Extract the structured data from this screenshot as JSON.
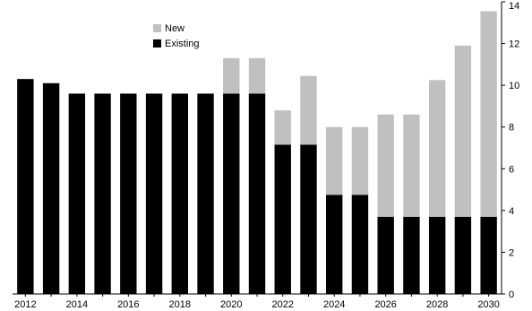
{
  "colors": {
    "existing": "#000000",
    "new": "#c0c0c0",
    "axis": "#000000"
  },
  "chart_data": {
    "type": "bar",
    "stacked": true,
    "categories": [
      "2012",
      "2013",
      "2014",
      "2015",
      "2016",
      "2017",
      "2018",
      "2019",
      "2020",
      "2021",
      "2022",
      "2023",
      "2024",
      "2025",
      "2026",
      "2027",
      "2028",
      "2029",
      "2030"
    ],
    "x_tick_labels": [
      "2012",
      "2014",
      "2016",
      "2018",
      "2020",
      "2022",
      "2024",
      "2026",
      "2028",
      "2030"
    ],
    "series": [
      {
        "name": "Existing",
        "values": [
          10.3,
          10.1,
          9.6,
          9.6,
          9.6,
          9.6,
          9.6,
          9.6,
          9.6,
          9.6,
          7.15,
          7.15,
          4.75,
          4.75,
          3.7,
          3.7,
          3.7,
          3.7,
          3.7
        ]
      },
      {
        "name": "New",
        "values": [
          0,
          0,
          0,
          0,
          0,
          0,
          0,
          0,
          1.7,
          1.7,
          1.65,
          3.3,
          3.25,
          3.25,
          4.9,
          4.9,
          6.55,
          8.2,
          9.85
        ]
      }
    ],
    "ylim": [
      0,
      14
    ],
    "y_ticks": [
      "0",
      "2",
      "4",
      "6",
      "8",
      "10",
      "12",
      "14"
    ],
    "y_axis_side": "right",
    "legend_position": "top-left",
    "grid": false
  }
}
